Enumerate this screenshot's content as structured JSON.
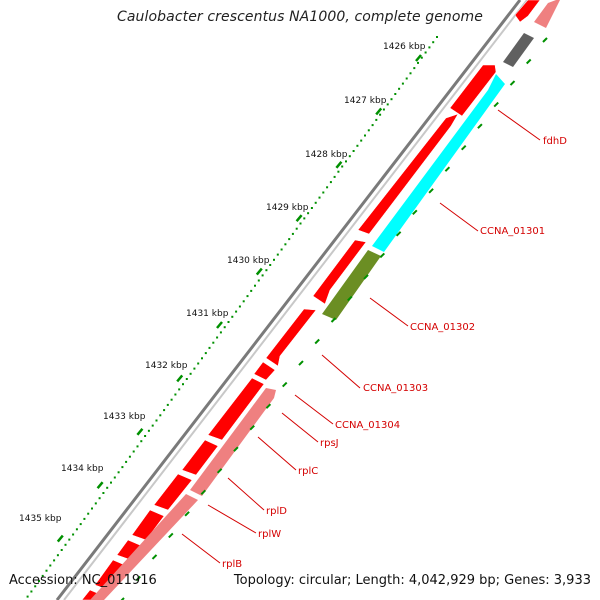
{
  "title": "Caulobacter crescentus NA1000, complete genome",
  "footer": {
    "accession": "Accession: NC_011916",
    "summary": "Topology: circular; Length: 4,042,929 bp; Genes: 3,933"
  },
  "colors": {
    "backbone": "#7a7a7a",
    "forward_gene": "#ff0000",
    "reverse_gene": "#ef8080",
    "tick": "#009000",
    "label": "#d40000",
    "CCNA_01301": "#00ffff",
    "CCNA_01302": "#6b8e23",
    "grey_gene": "#606060"
  },
  "scale_ticks": [
    {
      "label": "1426 kbp"
    },
    {
      "label": "1427 kbp"
    },
    {
      "label": "1428 kbp"
    },
    {
      "label": "1429 kbp"
    },
    {
      "label": "1430 kbp"
    },
    {
      "label": "1431 kbp"
    },
    {
      "label": "1432 kbp"
    },
    {
      "label": "1433 kbp"
    },
    {
      "label": "1434 kbp"
    },
    {
      "label": "1435 kbp"
    }
  ],
  "gene_labels": [
    {
      "name": "fdhD"
    },
    {
      "name": "CCNA_01301"
    },
    {
      "name": "CCNA_01302"
    },
    {
      "name": "CCNA_01303"
    },
    {
      "name": "CCNA_01304"
    },
    {
      "name": "rpsJ"
    },
    {
      "name": "rplC"
    },
    {
      "name": "rplD"
    },
    {
      "name": "rplW"
    },
    {
      "name": "rplB"
    }
  ]
}
